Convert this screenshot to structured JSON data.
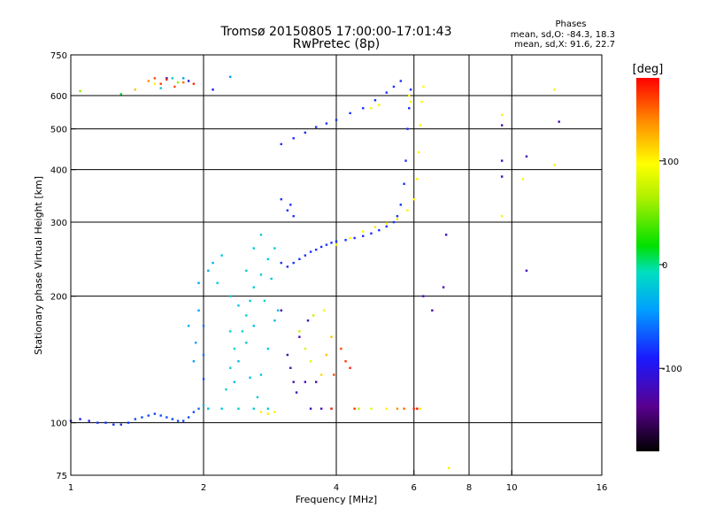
{
  "chart_data": {
    "type": "scatter",
    "title": "Tromsø 20150805 17:00:00-17:01:43",
    "subtitle": "RwPretec (8p)",
    "annotation": {
      "heading": "Phases",
      "line_o": "mean, sd,O: -84.3, 18.3",
      "line_x": "mean, sd,X:  91.6, 22.7"
    },
    "xlabel": "Frequency [MHz]",
    "ylabel": "Stationary phase Virtual Height [km]",
    "x_scale": "log",
    "y_scale": "log",
    "xlim": [
      1,
      16
    ],
    "ylim": [
      75,
      750
    ],
    "x_ticks": [
      1,
      2,
      4,
      6,
      8,
      10,
      16
    ],
    "x_grid": [
      2,
      4,
      6,
      8,
      10
    ],
    "y_ticks": [
      75,
      100,
      200,
      300,
      400,
      500,
      600,
      750
    ],
    "y_grid": [
      100,
      200,
      300,
      400,
      500,
      600
    ],
    "grid": true,
    "color_scale": {
      "label": "[deg]",
      "range": [
        -180,
        180
      ],
      "ticks": [
        100,
        0,
        -100
      ],
      "colormap": "rainbow"
    },
    "series": [
      {
        "values": [
          [
            1.0,
            101,
            -120
          ],
          [
            1.05,
            102,
            -120
          ],
          [
            1.1,
            101,
            -120
          ],
          [
            1.15,
            100,
            -115
          ],
          [
            1.2,
            100,
            -115
          ],
          [
            1.25,
            99,
            -115
          ],
          [
            1.3,
            99,
            -115
          ],
          [
            1.35,
            100,
            -115
          ],
          [
            1.4,
            102,
            -110
          ],
          [
            1.45,
            103,
            -110
          ],
          [
            1.5,
            104,
            -110
          ],
          [
            1.55,
            105,
            -110
          ],
          [
            1.6,
            104,
            -110
          ],
          [
            1.65,
            103,
            -110
          ],
          [
            1.7,
            102,
            -110
          ],
          [
            1.75,
            101,
            -110
          ],
          [
            1.8,
            101,
            -110
          ],
          [
            1.85,
            103,
            -110
          ],
          [
            1.9,
            106,
            -110
          ],
          [
            1.95,
            108,
            -100
          ],
          [
            2.0,
            127,
            -110
          ],
          [
            2.0,
            145,
            -100
          ],
          [
            2.0,
            170,
            -100
          ],
          [
            1.95,
            185,
            -90
          ],
          [
            1.95,
            215,
            -85
          ],
          [
            2.05,
            230,
            -80
          ],
          [
            1.9,
            140,
            -90
          ],
          [
            1.92,
            155,
            -90
          ],
          [
            1.85,
            170,
            -80
          ],
          [
            2.1,
            240,
            -80
          ],
          [
            2.0,
            110,
            -80
          ],
          [
            2.05,
            108,
            -80
          ]
        ]
      },
      {
        "values": [
          [
            2.05,
            108,
            -60
          ],
          [
            2.2,
            108,
            -60
          ],
          [
            2.4,
            108,
            -60
          ],
          [
            2.6,
            108,
            -60
          ],
          [
            2.8,
            108,
            -60
          ],
          [
            2.25,
            120,
            -55
          ],
          [
            2.3,
            135,
            -55
          ],
          [
            2.35,
            150,
            -55
          ],
          [
            2.45,
            165,
            -55
          ],
          [
            2.5,
            180,
            -55
          ],
          [
            2.55,
            195,
            -60
          ],
          [
            2.6,
            210,
            -60
          ],
          [
            2.7,
            225,
            -60
          ],
          [
            2.8,
            245,
            -60
          ],
          [
            2.9,
            260,
            -60
          ],
          [
            2.4,
            140,
            -70
          ],
          [
            2.5,
            155,
            -65
          ],
          [
            2.6,
            170,
            -65
          ],
          [
            2.7,
            130,
            -60
          ],
          [
            2.8,
            150,
            -60
          ],
          [
            2.9,
            175,
            -70
          ],
          [
            2.3,
            200,
            -60
          ],
          [
            2.5,
            230,
            -60
          ],
          [
            2.6,
            260,
            -60
          ],
          [
            2.7,
            280,
            -60
          ],
          [
            2.2,
            250,
            -60
          ],
          [
            2.15,
            215,
            -60
          ],
          [
            2.4,
            190,
            -65
          ],
          [
            2.75,
            195,
            -55
          ],
          [
            2.85,
            220,
            -65
          ],
          [
            2.95,
            185,
            -70
          ],
          [
            2.35,
            125,
            -70
          ],
          [
            2.55,
            128,
            -65
          ],
          [
            2.65,
            115,
            -60
          ],
          [
            2.3,
            165,
            -60
          ]
        ]
      },
      {
        "values": [
          [
            3.0,
            240,
            -115
          ],
          [
            3.1,
            235,
            -115
          ],
          [
            3.2,
            240,
            -115
          ],
          [
            3.3,
            245,
            -115
          ],
          [
            3.4,
            250,
            -115
          ],
          [
            3.5,
            255,
            -115
          ],
          [
            3.6,
            258,
            -115
          ],
          [
            3.7,
            262,
            -115
          ],
          [
            3.8,
            265,
            -115
          ],
          [
            3.9,
            268,
            -115
          ],
          [
            4.0,
            270,
            -115
          ],
          [
            4.2,
            272,
            -115
          ],
          [
            4.4,
            275,
            -115
          ],
          [
            4.6,
            278,
            -115
          ],
          [
            4.8,
            282,
            -115
          ],
          [
            5.0,
            287,
            -115
          ],
          [
            5.2,
            293,
            -115
          ],
          [
            5.4,
            300,
            -115
          ],
          [
            5.5,
            310,
            -115
          ],
          [
            5.6,
            330,
            -115
          ],
          [
            5.7,
            370,
            -115
          ],
          [
            5.75,
            420,
            -115
          ],
          [
            5.8,
            500,
            -115
          ],
          [
            5.85,
            560,
            -115
          ],
          [
            5.9,
            620,
            -115
          ],
          [
            5.6,
            650,
            -115
          ],
          [
            3.0,
            460,
            -115
          ],
          [
            3.2,
            475,
            -115
          ],
          [
            3.4,
            490,
            -115
          ],
          [
            3.6,
            505,
            -115
          ],
          [
            3.8,
            515,
            -115
          ],
          [
            4.0,
            525,
            -115
          ],
          [
            4.3,
            545,
            -115
          ],
          [
            4.6,
            560,
            -115
          ],
          [
            4.9,
            585,
            -115
          ],
          [
            5.2,
            610,
            -115
          ],
          [
            5.4,
            630,
            -115
          ],
          [
            3.0,
            340,
            -115
          ],
          [
            3.1,
            320,
            -115
          ],
          [
            3.2,
            310,
            -115
          ],
          [
            3.15,
            330,
            -115
          ]
        ]
      },
      {
        "values": [
          [
            4.0,
            265,
            100
          ],
          [
            4.3,
            275,
            100
          ],
          [
            4.6,
            285,
            100
          ],
          [
            4.9,
            292,
            105
          ],
          [
            5.2,
            298,
            105
          ],
          [
            5.5,
            305,
            105
          ],
          [
            5.8,
            320,
            100
          ],
          [
            6.0,
            340,
            100
          ],
          [
            6.1,
            380,
            100
          ],
          [
            6.15,
            440,
            100
          ],
          [
            6.2,
            510,
            95
          ],
          [
            6.25,
            580,
            90
          ],
          [
            6.3,
            630,
            95
          ],
          [
            5.9,
            580,
            100
          ],
          [
            5.85,
            600,
            100
          ],
          [
            4.8,
            560,
            100
          ],
          [
            5.0,
            570,
            100
          ],
          [
            3.3,
            165,
            60
          ],
          [
            3.4,
            150,
            70
          ],
          [
            3.5,
            140,
            80
          ],
          [
            3.6,
            125,
            80
          ],
          [
            3.7,
            130,
            110
          ],
          [
            3.8,
            145,
            120
          ],
          [
            3.9,
            160,
            120
          ],
          [
            3.55,
            180,
            60
          ],
          [
            3.75,
            185,
            90
          ],
          [
            2.7,
            106,
            100
          ],
          [
            2.8,
            105,
            100
          ],
          [
            2.9,
            106,
            100
          ],
          [
            4.5,
            108,
            60
          ],
          [
            4.8,
            108,
            80
          ],
          [
            5.2,
            108,
            100
          ],
          [
            5.5,
            108,
            140
          ],
          [
            5.7,
            108,
            150
          ],
          [
            6.2,
            108,
            100
          ],
          [
            9.5,
            540,
            100
          ],
          [
            9.5,
            310,
            100
          ],
          [
            12.5,
            620,
            100
          ],
          [
            12.5,
            410,
            100
          ],
          [
            10.6,
            380,
            100
          ],
          [
            7.2,
            78,
            100
          ]
        ]
      },
      {
        "values": [
          [
            3.5,
            108,
            -140
          ],
          [
            3.7,
            108,
            -140
          ],
          [
            3.9,
            108,
            -140
          ],
          [
            3.2,
            125,
            -140
          ],
          [
            3.4,
            125,
            -140
          ],
          [
            3.6,
            125,
            -140
          ],
          [
            3.1,
            145,
            -140
          ],
          [
            3.3,
            160,
            -140
          ],
          [
            3.45,
            175,
            -140
          ],
          [
            3.0,
            185,
            -140
          ],
          [
            3.15,
            135,
            -140
          ],
          [
            3.25,
            118,
            -140
          ],
          [
            6.6,
            185,
            -140
          ],
          [
            7.0,
            210,
            -140
          ],
          [
            7.1,
            280,
            -140
          ],
          [
            9.5,
            510,
            -140
          ],
          [
            9.5,
            420,
            -140
          ],
          [
            9.5,
            385,
            -140
          ],
          [
            10.8,
            430,
            -140
          ],
          [
            10.8,
            230,
            -140
          ],
          [
            12.8,
            520,
            -140
          ],
          [
            6.3,
            200,
            -140
          ]
        ]
      },
      {
        "values": [
          [
            1.4,
            620,
            120
          ],
          [
            1.5,
            650,
            140
          ],
          [
            1.55,
            640,
            100
          ],
          [
            1.6,
            625,
            -60
          ],
          [
            1.65,
            660,
            -140
          ],
          [
            1.7,
            660,
            -60
          ],
          [
            1.75,
            645,
            40
          ],
          [
            1.8,
            660,
            -90
          ],
          [
            1.85,
            650,
            -130
          ],
          [
            2.1,
            620,
            -120
          ],
          [
            2.3,
            665,
            -90
          ],
          [
            1.05,
            615,
            40
          ],
          [
            1.3,
            605,
            -10
          ]
        ]
      },
      {
        "values": [
          [
            1.55,
            660,
            160
          ],
          [
            1.6,
            640,
            165
          ],
          [
            1.65,
            655,
            170
          ],
          [
            1.72,
            630,
            160
          ],
          [
            1.8,
            645,
            150
          ],
          [
            1.9,
            640,
            170
          ],
          [
            4.1,
            150,
            160
          ],
          [
            4.2,
            140,
            165
          ],
          [
            4.3,
            135,
            170
          ],
          [
            3.95,
            130,
            160
          ],
          [
            6.0,
            108,
            170
          ],
          [
            6.1,
            108,
            175
          ],
          [
            3.9,
            108,
            165
          ],
          [
            4.4,
            108,
            165
          ]
        ]
      }
    ]
  }
}
